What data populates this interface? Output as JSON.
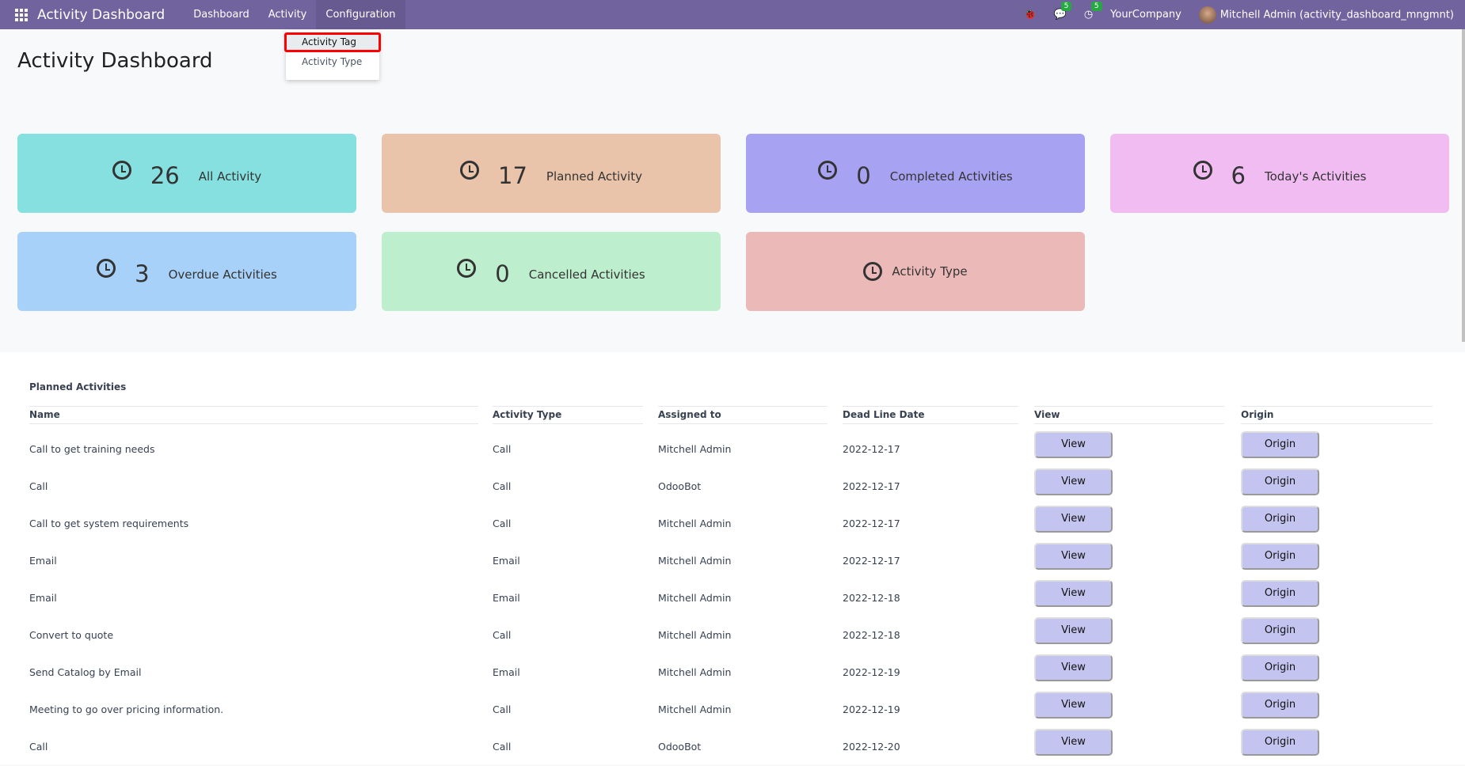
{
  "navbar": {
    "brand": "Activity Dashboard",
    "menus": [
      "Dashboard",
      "Activity",
      "Configuration"
    ],
    "bug_icon": "bug-icon",
    "messages_count": "5",
    "activities_count": "5",
    "company": "YourCompany",
    "user": "Mitchell Admin (activity_dashboard_mngmnt)"
  },
  "dropdown": {
    "items": [
      "Activity Tag",
      "Activity Type"
    ]
  },
  "page_title": "Activity Dashboard",
  "cards": [
    {
      "value": "26",
      "label": "All Activity",
      "color": "#87e0e0"
    },
    {
      "value": "17",
      "label": "Planned Activity",
      "color": "#e9c4aa"
    },
    {
      "value": "0",
      "label": "Completed Activities",
      "color": "#a8a2f2"
    },
    {
      "value": "6",
      "label": "Today's Activities",
      "color": "#f1bcf1"
    },
    {
      "value": "3",
      "label": "Overdue Activities",
      "color": "#a7d1f8"
    },
    {
      "value": "0",
      "label": "Cancelled Activities",
      "color": "#bdeecd"
    },
    {
      "value": "",
      "label": "Activity Type",
      "color": "#ebb9b8"
    }
  ],
  "table": {
    "title": "Planned Activities",
    "headers": [
      "Name",
      "Activity Type",
      "Assigned to",
      "Dead Line Date",
      "View",
      "Origin"
    ],
    "rows": [
      {
        "name": "Call to get training needs",
        "type": "Call",
        "assigned": "Mitchell Admin",
        "date": "2022-12-17",
        "view": "View",
        "origin": "Origin"
      },
      {
        "name": "Call",
        "type": "Call",
        "assigned": "OdooBot",
        "date": "2022-12-17",
        "view": "View",
        "origin": "Origin"
      },
      {
        "name": "Call to get system requirements",
        "type": "Call",
        "assigned": "Mitchell Admin",
        "date": "2022-12-17",
        "view": "View",
        "origin": "Origin"
      },
      {
        "name": "Email",
        "type": "Email",
        "assigned": "Mitchell Admin",
        "date": "2022-12-17",
        "view": "View",
        "origin": "Origin"
      },
      {
        "name": "Email",
        "type": "Email",
        "assigned": "Mitchell Admin",
        "date": "2022-12-18",
        "view": "View",
        "origin": "Origin"
      },
      {
        "name": "Convert to quote",
        "type": "Call",
        "assigned": "Mitchell Admin",
        "date": "2022-12-18",
        "view": "View",
        "origin": "Origin"
      },
      {
        "name": "Send Catalog by Email",
        "type": "Email",
        "assigned": "Mitchell Admin",
        "date": "2022-12-19",
        "view": "View",
        "origin": "Origin"
      },
      {
        "name": "Meeting to go over pricing information.",
        "type": "Call",
        "assigned": "Mitchell Admin",
        "date": "2022-12-19",
        "view": "View",
        "origin": "Origin"
      },
      {
        "name": "Call",
        "type": "Call",
        "assigned": "OdooBot",
        "date": "2022-12-20",
        "view": "View",
        "origin": "Origin"
      }
    ]
  }
}
